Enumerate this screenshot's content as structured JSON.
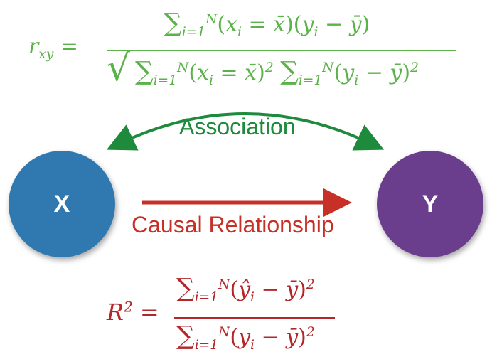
{
  "nodes": {
    "x_label": "X",
    "y_label": "Y"
  },
  "edges": {
    "association_label": "Association",
    "causal_label": "Causal Relationship"
  },
  "formulas": {
    "correlation": {
      "lhs": "r_xy =",
      "numerator": "∑_{i=1}^{N}(x_i = x̄)(y_i − ȳ)",
      "denominator": "√( ∑_{i=1}^{N}(x_i = x̄)^2 ∑_{i=1}^{N}(y_i − ȳ)^2 )"
    },
    "r_squared": {
      "lhs": "R^2 =",
      "numerator": "∑_{i=1}^{N}(ŷ_i − ȳ)^2",
      "denominator": "∑_{i=1}^{N}(y_i − ȳ)^2"
    }
  },
  "colors": {
    "correlation_formula": "#5bb14a",
    "association": "#1e8a3c",
    "causal": "#c63026",
    "r_squared_formula": "#b3262a",
    "x_node": "#2f79b0",
    "y_node": "#6b3d8d"
  }
}
